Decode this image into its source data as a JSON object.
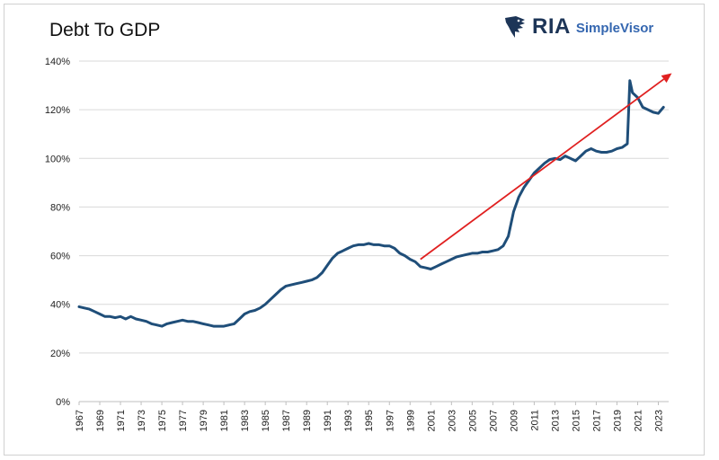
{
  "header": {
    "title": "Debt To GDP",
    "brand_name": "RIA",
    "brand_sub": "SimpleVisor",
    "brand_color": "#1d3557",
    "brand_sub_color": "#3567b0"
  },
  "chart_data": {
    "type": "line",
    "title": "Debt To GDP",
    "xlabel": "",
    "ylabel": "",
    "ylim": [
      0,
      140
    ],
    "xlim": [
      1967,
      2024
    ],
    "y_ticks": [
      "0%",
      "20%",
      "40%",
      "60%",
      "80%",
      "100%",
      "120%",
      "140%"
    ],
    "y_tick_values": [
      0,
      20,
      40,
      60,
      80,
      100,
      120,
      140
    ],
    "x_ticks": [
      "1967",
      "1969",
      "1971",
      "1973",
      "1975",
      "1977",
      "1979",
      "1981",
      "1983",
      "1985",
      "1987",
      "1989",
      "1991",
      "1993",
      "1995",
      "1997",
      "1999",
      "2001",
      "2003",
      "2005",
      "2007",
      "2009",
      "2011",
      "2013",
      "2015",
      "2017",
      "2019",
      "2021",
      "2023"
    ],
    "x_tick_values": [
      1967,
      1969,
      1971,
      1973,
      1975,
      1977,
      1979,
      1981,
      1983,
      1985,
      1987,
      1989,
      1991,
      1993,
      1995,
      1997,
      1999,
      2001,
      2003,
      2005,
      2007,
      2009,
      2011,
      2013,
      2015,
      2017,
      2019,
      2021,
      2023
    ],
    "grid": "horizontal",
    "line_color": "#1f4e79",
    "trend_color": "#e02020",
    "series": [
      {
        "x": [
          1967,
          1967.5,
          1968,
          1968.5,
          1969,
          1969.5,
          1970,
          1970.5,
          1971,
          1971.5,
          1972,
          1972.5,
          1973,
          1973.5,
          1974,
          1974.5,
          1975,
          1975.5,
          1976,
          1976.5,
          1977,
          1977.5,
          1978,
          1978.5,
          1979,
          1979.5,
          1980,
          1980.5,
          1981,
          1981.5,
          1982,
          1982.5,
          1983,
          1983.5,
          1984,
          1984.5,
          1985,
          1985.5,
          1986,
          1986.5,
          1987,
          1987.5,
          1988,
          1988.5,
          1989,
          1989.5,
          1990,
          1990.5,
          1991,
          1991.5,
          1992,
          1992.5,
          1993,
          1993.5,
          1994,
          1994.5,
          1995,
          1995.5,
          1996,
          1996.5,
          1997,
          1997.5,
          1998,
          1998.5,
          1999,
          1999.5,
          2000,
          2000.5,
          2001,
          2001.5,
          2002,
          2002.5,
          2003,
          2003.5,
          2004,
          2004.5,
          2005,
          2005.5,
          2006,
          2006.5,
          2007,
          2007.5,
          2008,
          2008.5,
          2009,
          2009.5,
          2010,
          2010.5,
          2011,
          2011.5,
          2012,
          2012.5,
          2013,
          2013.5,
          2014,
          2014.5,
          2015,
          2015.5,
          2016,
          2016.5,
          2017,
          2017.5,
          2018,
          2018.5,
          2019,
          2019.5,
          2020,
          2020.25,
          2020.5,
          2021,
          2021.5,
          2022,
          2022.5,
          2023,
          2023.5
        ],
        "y": [
          39,
          38.5,
          38,
          37,
          36,
          35,
          35,
          34.5,
          35,
          34,
          35,
          34,
          33.5,
          33,
          32,
          31.5,
          31,
          32,
          32.5,
          33,
          33.5,
          33,
          33,
          32.5,
          32,
          31.5,
          31,
          31,
          31,
          31.5,
          32,
          34,
          36,
          37,
          37.5,
          38.5,
          40,
          42,
          44,
          46,
          47.5,
          48,
          48.5,
          49,
          49.5,
          50,
          51,
          53,
          56,
          59,
          61,
          62,
          63,
          64,
          64.5,
          64.5,
          65,
          64.5,
          64.5,
          64,
          64,
          63,
          61,
          60,
          58.5,
          57.5,
          55.5,
          55,
          54.5,
          55.5,
          56.5,
          57.5,
          58.5,
          59.5,
          60,
          60.5,
          61,
          61,
          61.5,
          61.5,
          62,
          62.5,
          64,
          68,
          78,
          84,
          88,
          91,
          94,
          96,
          98,
          99.5,
          100,
          99.5,
          101,
          100,
          99,
          101,
          103,
          104,
          103,
          102.5,
          102.5,
          103,
          104,
          104.5,
          106,
          132,
          127,
          125,
          121,
          120,
          119,
          118.5,
          121
        ]
      }
    ],
    "trend_line": {
      "x": [
        2000,
        2024.3
      ],
      "y": [
        58.5,
        135
      ]
    }
  }
}
